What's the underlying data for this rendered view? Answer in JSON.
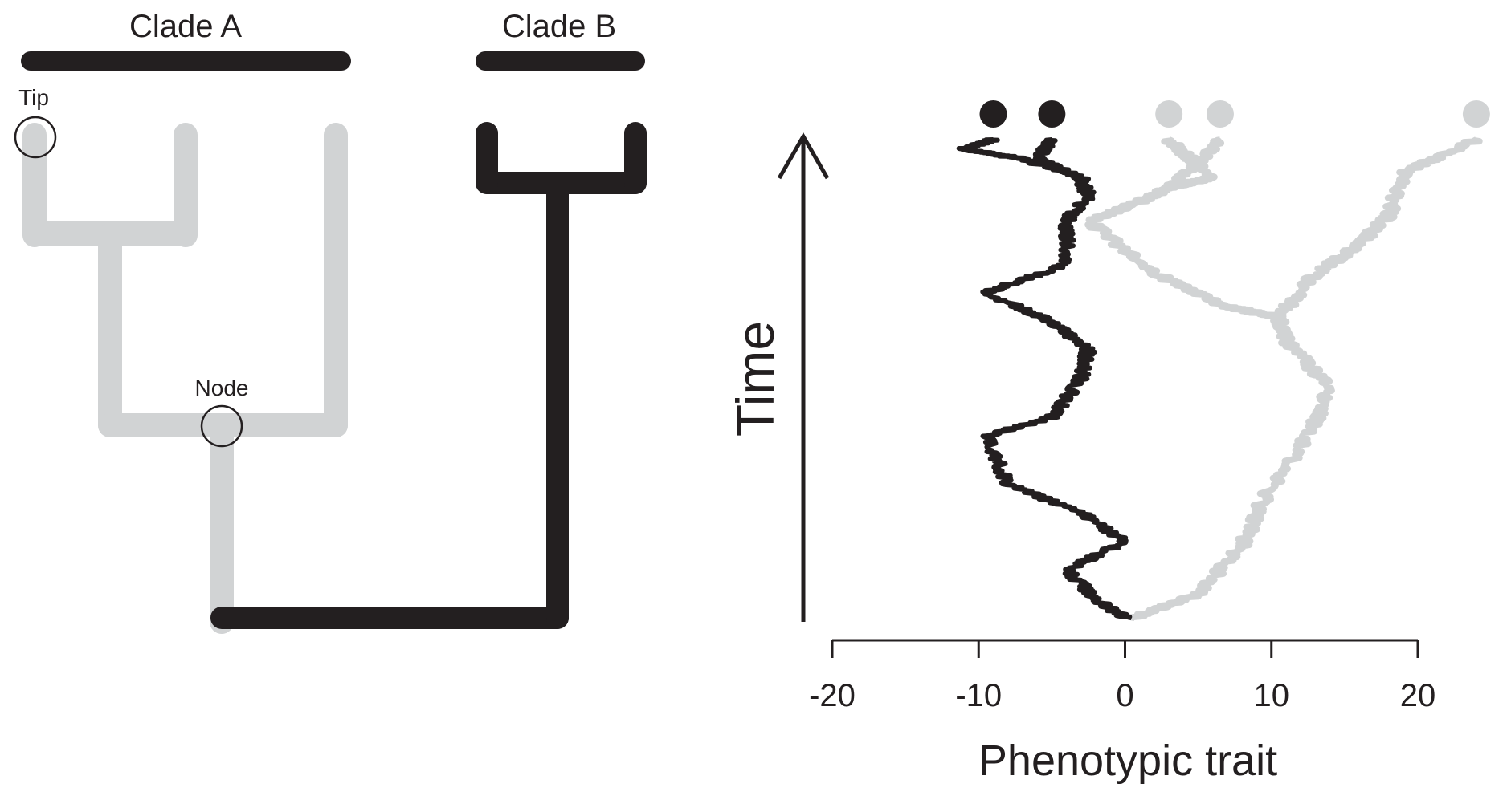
{
  "colors": {
    "clade_a": "#d1d3d4",
    "clade_b": "#231f20",
    "background": "#ffffff"
  },
  "tree": {
    "clade_a_label": "Clade A",
    "clade_b_label": "Clade B",
    "tip_label": "Tip",
    "node_label": "Node"
  },
  "plot": {
    "ylabel": "Time",
    "xlabel": "Phenotypic trait",
    "xticks": [
      "-20",
      "-10",
      "0",
      "10",
      "20"
    ]
  },
  "chart_data": {
    "type": "line",
    "xlabel": "Phenotypic trait",
    "ylabel": "Time",
    "xlim": [
      -20,
      20
    ],
    "series": [
      {
        "clade": "B",
        "color": "#231f20",
        "tip_values": [
          -9,
          -5
        ]
      },
      {
        "clade": "A",
        "color": "#d1d3d4",
        "tip_values": [
          3,
          6.5,
          24
        ]
      }
    ]
  }
}
